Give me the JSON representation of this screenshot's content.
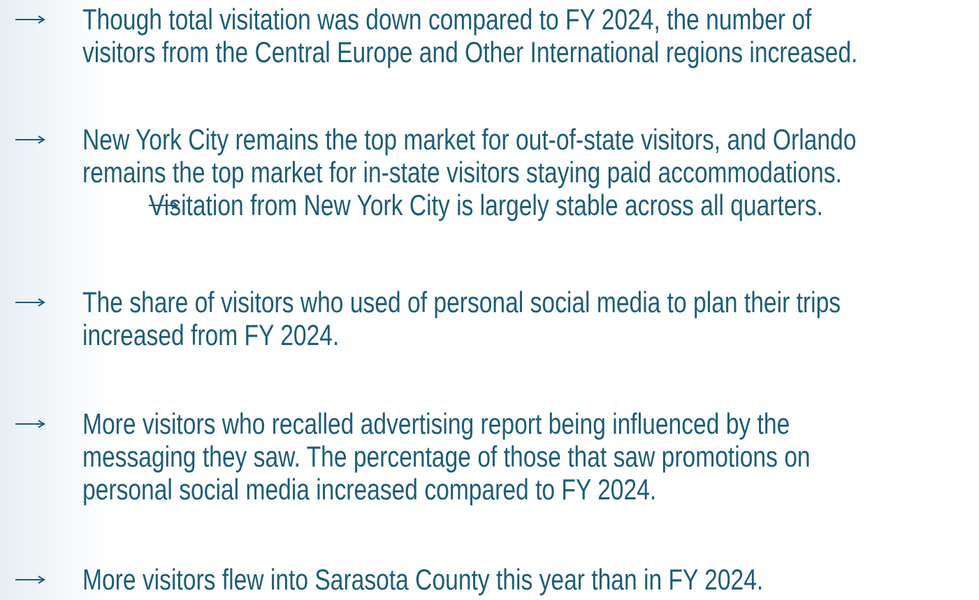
{
  "bullets": [
    {
      "lines": [
        "Though total visitation was down compared to FY 2024, the number of",
        "visitors from the Central Europe and Other International regions increased."
      ],
      "sub": []
    },
    {
      "lines": [
        "New York City remains the top market for out-of-state visitors, and Orlando",
        "remains the top market for in-state visitors staying paid accommodations."
      ],
      "sub": [
        {
          "lines": [
            "Visitation from New York City is largely stable across all quarters."
          ]
        }
      ]
    },
    {
      "lines": [
        "The share of visitors who used of personal social media to plan their trips",
        "increased from FY 2024."
      ],
      "sub": []
    },
    {
      "lines": [
        "More visitors who recalled advertising report being influenced by the",
        "messaging they saw. The percentage of those that saw promotions on",
        "personal social media increased compared to FY 2024."
      ],
      "sub": []
    },
    {
      "lines": [
        "More visitors flew into Sarasota County this year than in FY 2024."
      ],
      "sub": []
    }
  ]
}
